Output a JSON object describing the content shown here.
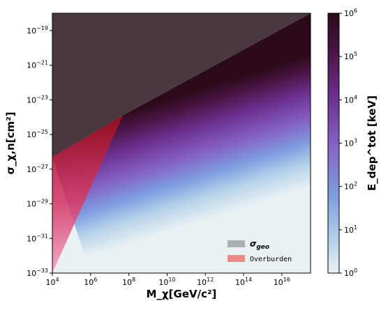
{
  "chart_data": {
    "type": "heatmap",
    "xlabel": "M_χ[GeV/c²]",
    "ylabel": "σ_χ,n[cm²]",
    "colorbar_label": "E_dep^tot [keV]",
    "x_scale": "log",
    "y_scale": "log",
    "colorbar_scale": "log",
    "xlim": [
      10000,
      3.16e+17
    ],
    "ylim": [
      1e-33,
      1e-18
    ],
    "colorbar_lim": [
      1,
      1000000
    ],
    "x_ticks": [
      {
        "base": "10",
        "exp": "4",
        "value": 10000.0
      },
      {
        "base": "10",
        "exp": "6",
        "value": 1000000.0
      },
      {
        "base": "10",
        "exp": "8",
        "value": 100000000.0
      },
      {
        "base": "10",
        "exp": "10",
        "value": 10000000000.0
      },
      {
        "base": "10",
        "exp": "12",
        "value": 1000000000000.0
      },
      {
        "base": "10",
        "exp": "14",
        "value": 100000000000000.0
      },
      {
        "base": "10",
        "exp": "16",
        "value": 1e+16
      }
    ],
    "y_ticks": [
      {
        "base": "10",
        "exp": "−33",
        "value": 1e-33
      },
      {
        "base": "10",
        "exp": "−31",
        "value": 1e-31
      },
      {
        "base": "10",
        "exp": "−29",
        "value": 1e-29
      },
      {
        "base": "10",
        "exp": "−27",
        "value": 1e-27
      },
      {
        "base": "10",
        "exp": "−25",
        "value": 1e-25
      },
      {
        "base": "10",
        "exp": "−23",
        "value": 1e-23
      },
      {
        "base": "10",
        "exp": "−21",
        "value": 1e-21
      },
      {
        "base": "10",
        "exp": "−19",
        "value": 1e-19
      }
    ],
    "colorbar_ticks": [
      {
        "base": "10",
        "exp": "0",
        "value": 1
      },
      {
        "base": "10",
        "exp": "1",
        "value": 10
      },
      {
        "base": "10",
        "exp": "2",
        "value": 100
      },
      {
        "base": "10",
        "exp": "3",
        "value": 1000
      },
      {
        "base": "10",
        "exp": "4",
        "value": 10000
      },
      {
        "base": "10",
        "exp": "5",
        "value": 100000
      },
      {
        "base": "10",
        "exp": "6",
        "value": 1000000
      }
    ],
    "regions": [
      {
        "name": "σ_geo",
        "color": "#3d2a33",
        "boundary": [
          [
            10000.0,
            5e-27
          ],
          [
            50000000.0,
            1.3e-24
          ],
          [
            3.16e+17,
            1e-18
          ]
        ]
      },
      {
        "name": "Overburden",
        "color": "#b01020",
        "boundary": [
          [
            10000.0,
            1e-33
          ],
          [
            50000000.0,
            1.3e-24
          ],
          [
            10000.0,
            5e-27
          ]
        ]
      }
    ],
    "legend": {
      "placement": "lower-right",
      "entries": [
        {
          "label": "σ",
          "sub": "geo",
          "color": "#aab0b4"
        },
        {
          "label": "Overburden",
          "sub": "",
          "color": "#ee8a82"
        }
      ]
    }
  }
}
